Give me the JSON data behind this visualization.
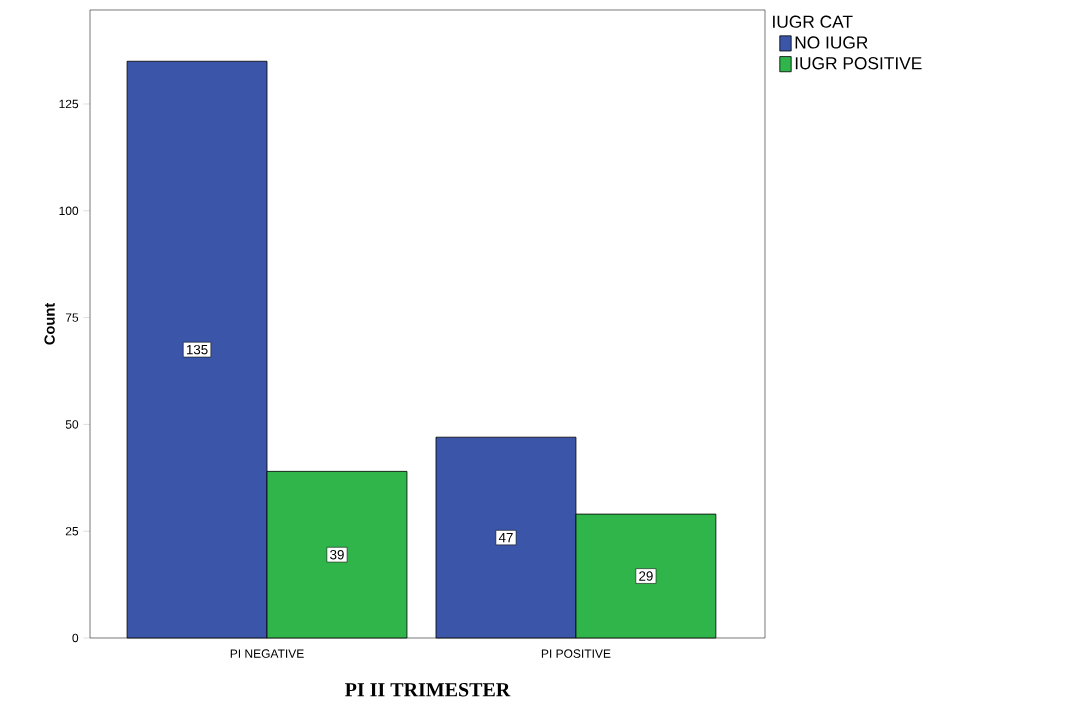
{
  "chart_data": {
    "type": "bar",
    "xlabel": "PI II TRIMESTER",
    "ylabel": "Count",
    "legend_title": "IUGR CAT",
    "categories": [
      "PI NEGATIVE",
      "PI POSITIVE"
    ],
    "series": [
      {
        "name": "NO IUGR",
        "color": "#3b56a8",
        "values": [
          135,
          47
        ]
      },
      {
        "name": "IUGR POSITIVE",
        "color": "#2fb54a",
        "values": [
          39,
          29
        ]
      }
    ],
    "ylim": [
      0,
      147
    ],
    "yticks": [
      0,
      25,
      50,
      75,
      100,
      125
    ],
    "data_labels": true,
    "legend": "top right",
    "grid": false
  }
}
